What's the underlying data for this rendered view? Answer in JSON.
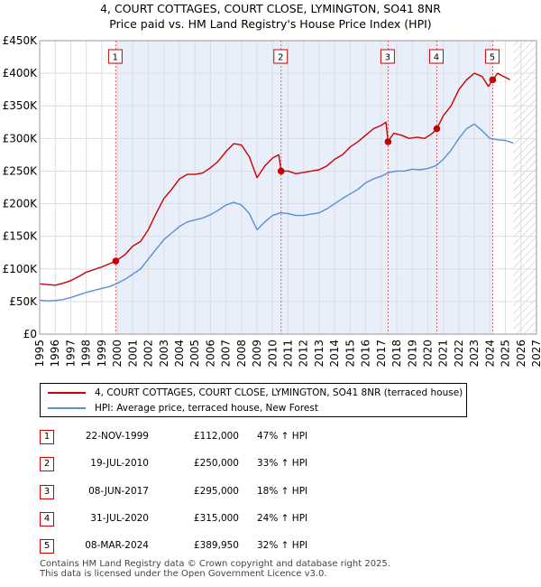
{
  "chart_data": {
    "type": "line",
    "title": "4, COURT COTTAGES, COURT CLOSE, LYMINGTON, SO41 8NR",
    "subtitle": "Price paid vs. HM Land Registry's House Price Index (HPI)",
    "xlim": [
      1995,
      2027
    ],
    "ylim": [
      0,
      450000
    ],
    "x_ticks": [
      "1995",
      "1996",
      "1997",
      "1998",
      "1999",
      "2000",
      "2001",
      "2002",
      "2003",
      "2004",
      "2005",
      "2006",
      "2007",
      "2008",
      "2009",
      "2010",
      "2011",
      "2012",
      "2013",
      "2014",
      "2015",
      "2016",
      "2017",
      "2018",
      "2019",
      "2020",
      "2021",
      "2022",
      "2023",
      "2024",
      "2025",
      "2026",
      "2027"
    ],
    "y_ticks": [
      {
        "value": 0,
        "label": "£0"
      },
      {
        "value": 50000,
        "label": "£50K"
      },
      {
        "value": 100000,
        "label": "£100K"
      },
      {
        "value": 150000,
        "label": "£150K"
      },
      {
        "value": 200000,
        "label": "£200K"
      },
      {
        "value": 250000,
        "label": "£250K"
      },
      {
        "value": 300000,
        "label": "£300K"
      },
      {
        "value": 350000,
        "label": "£350K"
      },
      {
        "value": 400000,
        "label": "£400K"
      },
      {
        "value": 450000,
        "label": "£450K"
      }
    ],
    "shaded_owned_period": [
      1999.9,
      2024.2
    ],
    "hatched_forecast_from": 2025.5,
    "series": [
      {
        "name": "4, COURT COTTAGES, COURT CLOSE, LYMINGTON, SO41 8NR (terraced house)",
        "color": "#cc0000",
        "points": [
          [
            1995.0,
            77000
          ],
          [
            1995.5,
            76000
          ],
          [
            1996.0,
            75000
          ],
          [
            1996.5,
            78000
          ],
          [
            1997.0,
            82000
          ],
          [
            1997.5,
            88000
          ],
          [
            1998.0,
            95000
          ],
          [
            1998.5,
            99000
          ],
          [
            1999.0,
            103000
          ],
          [
            1999.5,
            108000
          ],
          [
            1999.9,
            112000
          ],
          [
            2000.5,
            122000
          ],
          [
            2001.0,
            135000
          ],
          [
            2001.5,
            142000
          ],
          [
            2002.0,
            160000
          ],
          [
            2002.5,
            185000
          ],
          [
            2003.0,
            208000
          ],
          [
            2003.5,
            222000
          ],
          [
            2004.0,
            238000
          ],
          [
            2004.5,
            245000
          ],
          [
            2005.0,
            245000
          ],
          [
            2005.5,
            247000
          ],
          [
            2006.0,
            255000
          ],
          [
            2006.5,
            265000
          ],
          [
            2007.0,
            280000
          ],
          [
            2007.5,
            292000
          ],
          [
            2008.0,
            290000
          ],
          [
            2008.5,
            272000
          ],
          [
            2009.0,
            240000
          ],
          [
            2009.5,
            258000
          ],
          [
            2010.0,
            270000
          ],
          [
            2010.4,
            275000
          ],
          [
            2010.55,
            250000
          ],
          [
            2011.0,
            250000
          ],
          [
            2011.5,
            246000
          ],
          [
            2012.0,
            248000
          ],
          [
            2012.5,
            250000
          ],
          [
            2013.0,
            252000
          ],
          [
            2013.5,
            258000
          ],
          [
            2014.0,
            268000
          ],
          [
            2014.5,
            275000
          ],
          [
            2015.0,
            287000
          ],
          [
            2015.5,
            295000
          ],
          [
            2016.0,
            305000
          ],
          [
            2016.5,
            315000
          ],
          [
            2017.0,
            320000
          ],
          [
            2017.3,
            325000
          ],
          [
            2017.44,
            295000
          ],
          [
            2017.8,
            308000
          ],
          [
            2018.3,
            305000
          ],
          [
            2018.8,
            300000
          ],
          [
            2019.3,
            302000
          ],
          [
            2019.8,
            300000
          ],
          [
            2020.3,
            308000
          ],
          [
            2020.58,
            315000
          ],
          [
            2021.0,
            335000
          ],
          [
            2021.5,
            350000
          ],
          [
            2022.0,
            375000
          ],
          [
            2022.5,
            390000
          ],
          [
            2023.0,
            400000
          ],
          [
            2023.5,
            395000
          ],
          [
            2023.9,
            380000
          ],
          [
            2024.18,
            389950
          ],
          [
            2024.5,
            400000
          ],
          [
            2024.8,
            396000
          ],
          [
            2025.3,
            390000
          ]
        ]
      },
      {
        "name": "HPI: Average price, terraced house, New Forest",
        "color": "#5a8fd0",
        "points": [
          [
            1995.0,
            52000
          ],
          [
            1995.5,
            51000
          ],
          [
            1996.0,
            51500
          ],
          [
            1996.5,
            53000
          ],
          [
            1997.0,
            56000
          ],
          [
            1997.5,
            60000
          ],
          [
            1998.0,
            64000
          ],
          [
            1998.5,
            67000
          ],
          [
            1999.0,
            70000
          ],
          [
            1999.5,
            73000
          ],
          [
            2000.0,
            78000
          ],
          [
            2000.5,
            84000
          ],
          [
            2001.0,
            92000
          ],
          [
            2001.5,
            100000
          ],
          [
            2002.0,
            115000
          ],
          [
            2002.5,
            130000
          ],
          [
            2003.0,
            145000
          ],
          [
            2003.5,
            155000
          ],
          [
            2004.0,
            165000
          ],
          [
            2004.5,
            172000
          ],
          [
            2005.0,
            175000
          ],
          [
            2005.5,
            178000
          ],
          [
            2006.0,
            183000
          ],
          [
            2006.5,
            190000
          ],
          [
            2007.0,
            198000
          ],
          [
            2007.5,
            202000
          ],
          [
            2008.0,
            198000
          ],
          [
            2008.5,
            185000
          ],
          [
            2009.0,
            160000
          ],
          [
            2009.5,
            172000
          ],
          [
            2010.0,
            182000
          ],
          [
            2010.5,
            186000
          ],
          [
            2011.0,
            185000
          ],
          [
            2011.5,
            182000
          ],
          [
            2012.0,
            182000
          ],
          [
            2012.5,
            184000
          ],
          [
            2013.0,
            186000
          ],
          [
            2013.5,
            192000
          ],
          [
            2014.0,
            200000
          ],
          [
            2014.5,
            208000
          ],
          [
            2015.0,
            215000
          ],
          [
            2015.5,
            222000
          ],
          [
            2016.0,
            232000
          ],
          [
            2016.5,
            238000
          ],
          [
            2017.0,
            242000
          ],
          [
            2017.5,
            248000
          ],
          [
            2018.0,
            250000
          ],
          [
            2018.5,
            250000
          ],
          [
            2019.0,
            253000
          ],
          [
            2019.5,
            252000
          ],
          [
            2020.0,
            254000
          ],
          [
            2020.5,
            258000
          ],
          [
            2021.0,
            268000
          ],
          [
            2021.5,
            282000
          ],
          [
            2022.0,
            300000
          ],
          [
            2022.5,
            315000
          ],
          [
            2023.0,
            322000
          ],
          [
            2023.5,
            312000
          ],
          [
            2024.0,
            300000
          ],
          [
            2024.5,
            298000
          ],
          [
            2025.0,
            297000
          ],
          [
            2025.5,
            293000
          ]
        ]
      }
    ],
    "sales": [
      {
        "label": "1",
        "year": 1999.9,
        "price": 112000
      },
      {
        "label": "2",
        "year": 2010.55,
        "price": 250000
      },
      {
        "label": "3",
        "year": 2017.44,
        "price": 295000
      },
      {
        "label": "4",
        "year": 2020.58,
        "price": 315000
      },
      {
        "label": "5",
        "year": 2024.18,
        "price": 389950
      }
    ]
  },
  "legend": {
    "property": "4, COURT COTTAGES, COURT CLOSE, LYMINGTON, SO41 8NR (terraced house)",
    "hpi": "HPI: Average price, terraced house, New Forest"
  },
  "transactions": [
    {
      "num": "1",
      "date": "22-NOV-1999",
      "price": "£112,000",
      "hpi": "47% ↑ HPI"
    },
    {
      "num": "2",
      "date": "19-JUL-2010",
      "price": "£250,000",
      "hpi": "33% ↑ HPI"
    },
    {
      "num": "3",
      "date": "08-JUN-2017",
      "price": "£295,000",
      "hpi": "18% ↑ HPI"
    },
    {
      "num": "4",
      "date": "31-JUL-2020",
      "price": "£315,000",
      "hpi": "24% ↑ HPI"
    },
    {
      "num": "5",
      "date": "08-MAR-2024",
      "price": "£389,950",
      "hpi": "32% ↑ HPI"
    }
  ],
  "footer": {
    "line1": "Contains HM Land Registry data © Crown copyright and database right 2025.",
    "line2": "This data is licensed under the Open Government Licence v3.0."
  }
}
